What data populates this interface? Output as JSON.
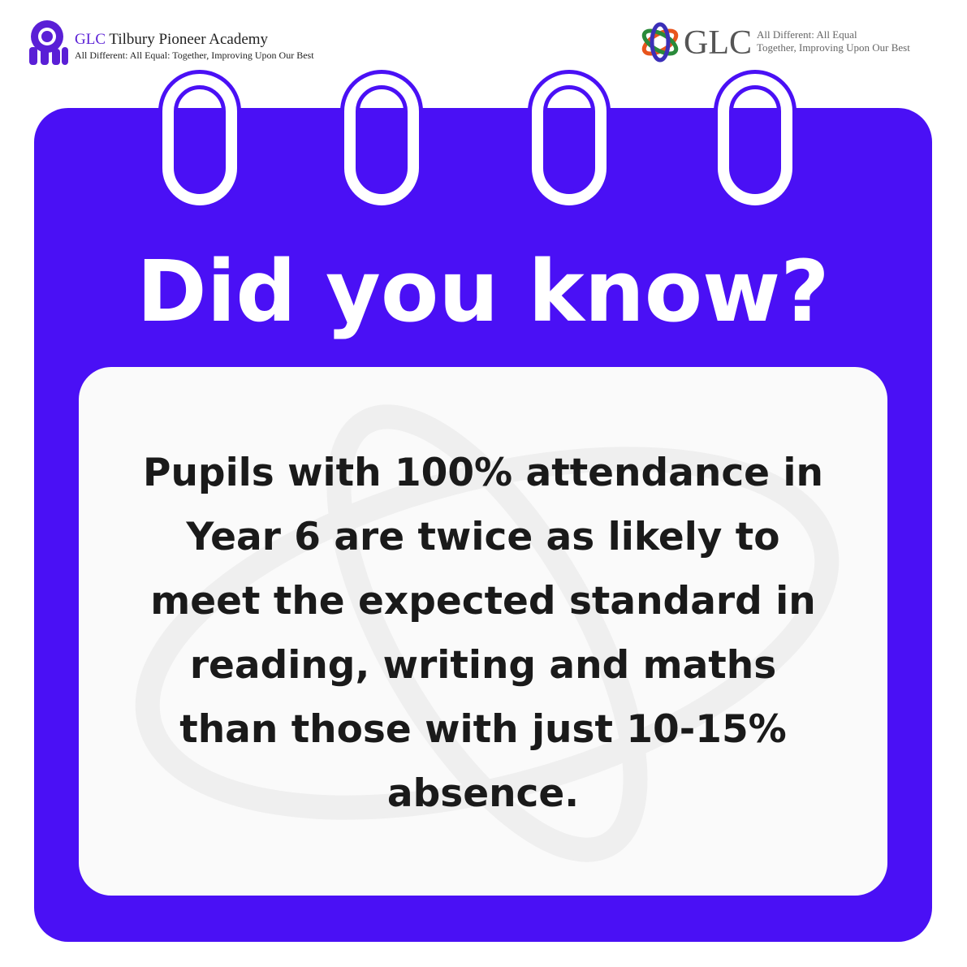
{
  "header": {
    "left": {
      "brand": "GLC",
      "name": "Tilbury Pioneer Academy",
      "tagline": "All Different: All Equal: Together, Improving Upon Our Best"
    },
    "right": {
      "brand": "GLC",
      "tagline": [
        "All Different: All Equal",
        "Together, Improving Upon Our Best"
      ]
    }
  },
  "card": {
    "title": "Did you know?",
    "body": [
      "Pupils with 100% attendance in",
      "Year 6 are twice as likely to",
      "meet the expected standard in",
      "reading, writing and maths",
      "than those with just 10-15%",
      "absence."
    ]
  }
}
